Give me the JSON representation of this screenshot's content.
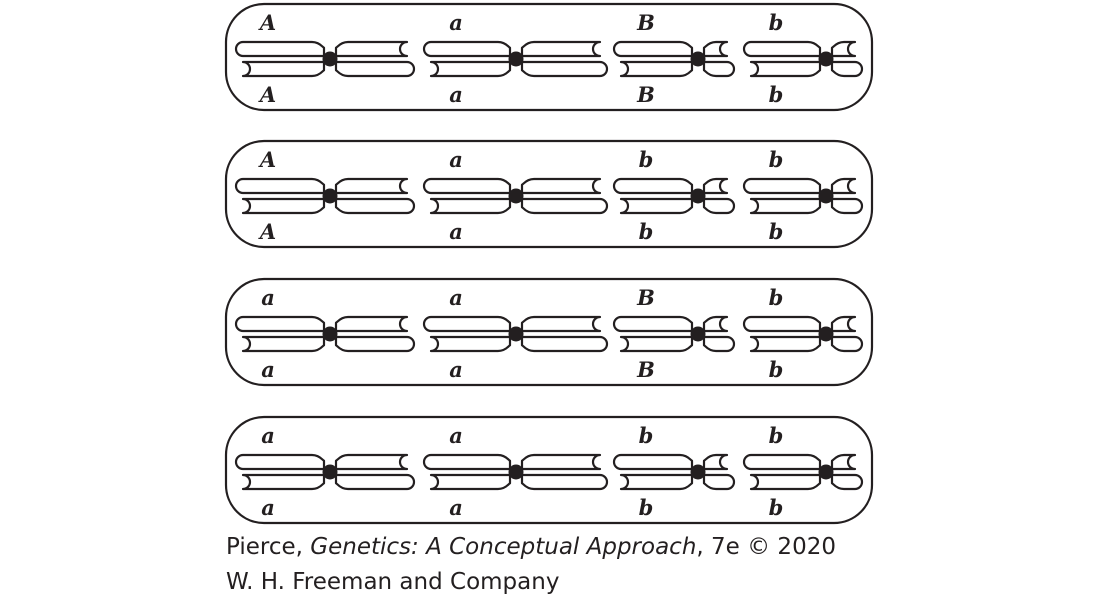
{
  "cells": [
    {
      "alleles": [
        {
          "top": "A",
          "bottom": "A"
        },
        {
          "top": "a",
          "bottom": "a"
        },
        {
          "top": "B",
          "bottom": "B"
        },
        {
          "top": "b",
          "bottom": "b"
        }
      ]
    },
    {
      "alleles": [
        {
          "top": "A",
          "bottom": "A"
        },
        {
          "top": "a",
          "bottom": "a"
        },
        {
          "top": "b",
          "bottom": "b"
        },
        {
          "top": "b",
          "bottom": "b"
        }
      ]
    },
    {
      "alleles": [
        {
          "top": "a",
          "bottom": "a"
        },
        {
          "top": "a",
          "bottom": "a"
        },
        {
          "top": "B",
          "bottom": "B"
        },
        {
          "top": "b",
          "bottom": "b"
        }
      ]
    },
    {
      "alleles": [
        {
          "top": "a",
          "bottom": "a"
        },
        {
          "top": "a",
          "bottom": "a"
        },
        {
          "top": "b",
          "bottom": "b"
        },
        {
          "top": "b",
          "bottom": "b"
        }
      ]
    }
  ],
  "credit": {
    "author": "Pierce, ",
    "book_title": "Genetics: A Conceptual Approach",
    "edition": ", 7e © 2020",
    "publisher": "W. H. Freeman and Company"
  },
  "colors": {
    "ink": "#231f20",
    "background": "#ffffff"
  }
}
